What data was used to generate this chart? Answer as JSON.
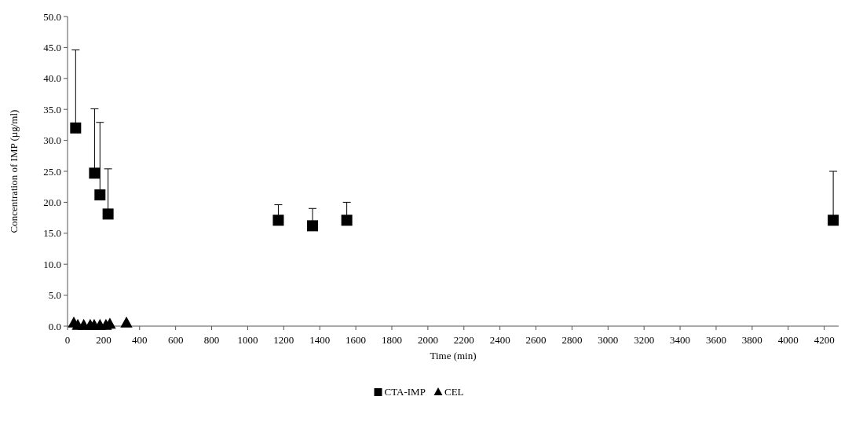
{
  "chart_data": {
    "type": "scatter",
    "xlabel": "Time (min)",
    "ylabel": "Concentration of IMP (µg/ml)",
    "xlim": [
      0,
      4280
    ],
    "xticks": [
      0,
      200,
      400,
      600,
      800,
      1000,
      1200,
      1400,
      1600,
      1800,
      2000,
      2200,
      2400,
      2600,
      2800,
      3000,
      3200,
      3400,
      3600,
      3800,
      4000,
      4200
    ],
    "ylim": [
      0,
      50
    ],
    "yticks": [
      {
        "value": 0,
        "label": "0.0"
      },
      {
        "value": 5,
        "label": "5.0"
      },
      {
        "value": 10,
        "label": "10.0"
      },
      {
        "value": 15,
        "label": "15.0"
      },
      {
        "value": 20,
        "label": "20.0"
      },
      {
        "value": 25,
        "label": "25.0"
      },
      {
        "value": 30,
        "label": "30.0"
      },
      {
        "value": 35,
        "label": "35.0"
      },
      {
        "value": 40,
        "label": "40.0"
      },
      {
        "value": 45,
        "label": "45.0"
      },
      {
        "value": 50,
        "label": "50.0"
      }
    ],
    "grid": false,
    "legend": "bottom",
    "series": [
      {
        "name": "CTA-IMP",
        "color": "#000000",
        "marker": "square",
        "x": [
          45,
          150,
          180,
          225,
          1170,
          1360,
          1550,
          4250
        ],
        "values": [
          32.0,
          24.7,
          21.2,
          18.1,
          17.1,
          16.2,
          17.1,
          17.1
        ],
        "errors": [
          [
            32.0,
            44.6
          ],
          [
            24.7,
            35.1
          ],
          [
            21.2,
            32.9
          ],
          [
            18.1,
            25.4
          ],
          [
            17.1,
            19.6
          ],
          [
            16.2,
            19.0
          ],
          [
            17.1,
            20.0
          ],
          [
            17.1,
            25.0
          ]
        ]
      },
      {
        "name": "CEL",
        "color": "#000000",
        "marker": "triangle",
        "x": [
          35,
          57,
          90,
          126,
          148,
          180,
          213,
          235,
          327
        ],
        "values": [
          0.5,
          0.1,
          0.1,
          0.1,
          0.1,
          0.1,
          0.1,
          0.3,
          0.5
        ]
      }
    ]
  }
}
